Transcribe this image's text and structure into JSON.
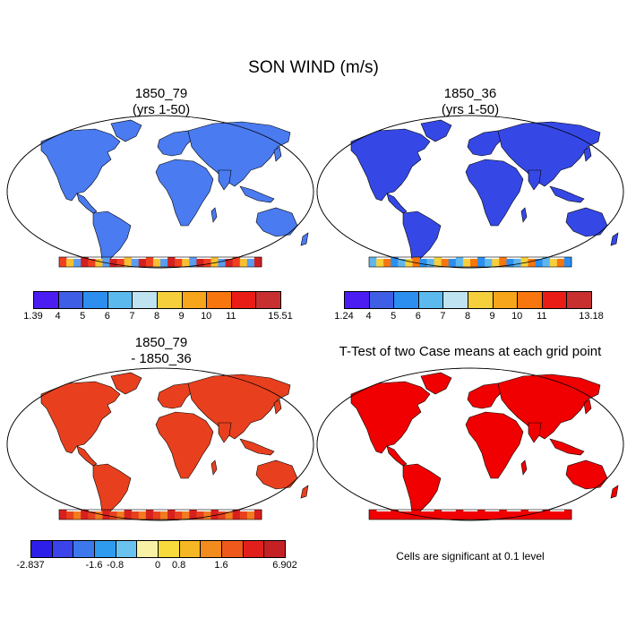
{
  "title": "SON WIND (m/s)",
  "panels": [
    {
      "id": "p1",
      "title_lines": [
        "1850_79",
        "(yrs 1-50)"
      ],
      "land_color": "#4a7bf0",
      "antarctica_palette": [
        "#f04020",
        "#f8c030",
        "#5a9cf0",
        "#d02020"
      ],
      "colorbar": {
        "colors": [
          "#4b1df2",
          "#3f5ee6",
          "#2c8fef",
          "#5cb9ee",
          "#bfe3f0",
          "#f5cf3c",
          "#f7a51a",
          "#f7760e",
          "#ea1c16",
          "#c8302f"
        ],
        "labels": [
          "1.39",
          "4",
          "5",
          "6",
          "7",
          "8",
          "9",
          "10",
          "11",
          "15.51"
        ]
      }
    },
    {
      "id": "p2",
      "title_lines": [
        "1850_36",
        "(yrs 1-50)"
      ],
      "land_color": "#3548e6",
      "antarctica_palette": [
        "#5fb6ee",
        "#f5cf3c",
        "#f7760e",
        "#2c8fef"
      ],
      "colorbar": {
        "colors": [
          "#4b1df2",
          "#3f5ee6",
          "#2c8fef",
          "#5cb9ee",
          "#bfe3f0",
          "#f5cf3c",
          "#f7a51a",
          "#f7760e",
          "#ea1c16",
          "#c8302f"
        ],
        "labels": [
          "1.24",
          "4",
          "5",
          "6",
          "7",
          "8",
          "9",
          "10",
          "11",
          "13.18"
        ]
      }
    },
    {
      "id": "p3",
      "title_lines": [
        "1850_79",
        "- 1850_36"
      ],
      "land_color": "#e8401e",
      "antarctica_palette": [
        "#d8201e",
        "#e8401e",
        "#f27b1f"
      ],
      "colorbar": {
        "colors": [
          "#2d1fe8",
          "#3b43ea",
          "#3c78ec",
          "#2e9bee",
          "#6ac3ef",
          "#f7f2a6",
          "#f8da3c",
          "#f6b724",
          "#f38c1d",
          "#ef5a1c",
          "#e2201b",
          "#c42124"
        ],
        "labels": [
          "-2.837",
          "-1.6",
          "-0.8",
          "0",
          "0.8",
          "1.6",
          "6.902"
        ]
      }
    },
    {
      "id": "p4",
      "title_lines": [
        "T-Test of two Case means at each grid point"
      ],
      "land_color": "#f00000",
      "antarctica_palette": [
        "#f00000"
      ],
      "note": "Cells are significant at 0.1 level"
    }
  ],
  "colors": {
    "ocean": "#ffffff",
    "coastline": "#000000"
  }
}
